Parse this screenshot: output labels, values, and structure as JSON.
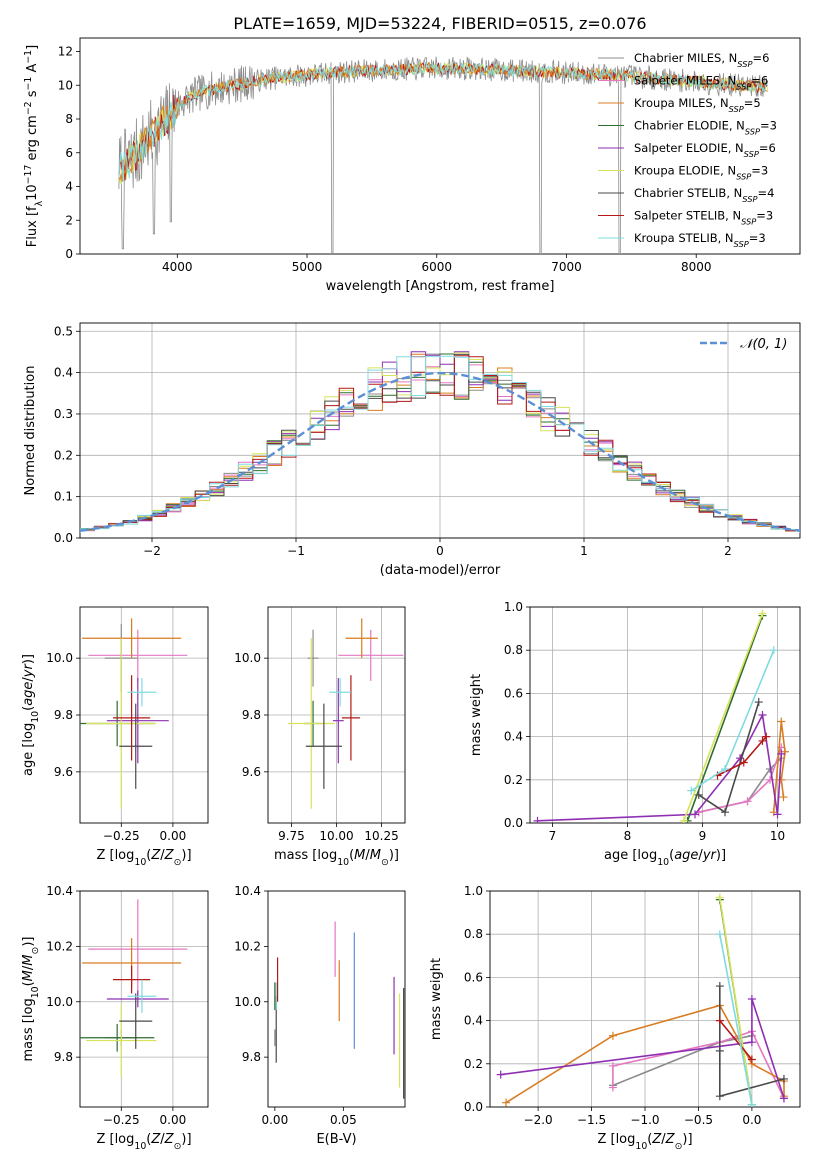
{
  "figure": {
    "title": "PLATE=1659, MJD=53224, FIBERID=0515, z=0.076"
  },
  "colors": {
    "Chabrier MILES": "#8c8c8c",
    "Salpeter MILES": "#e377c2",
    "Kroupa MILES": "#d97c21",
    "Chabrier ELODIE": "#2e6e2e",
    "Salpeter ELODIE": "#8e2fb3",
    "Kroupa ELODIE": "#d8e35a",
    "Chabrier STELIB": "#4a4a4a",
    "Salpeter STELIB": "#b41818",
    "Kroupa STELIB": "#7fdbe0",
    "gaussian": "#5b8fd6",
    "grid": "#b0b0b0"
  },
  "chart_data": [
    {
      "type": "line",
      "id": "spectrum",
      "xlabel": "wavelength [Angstrom, rest frame]",
      "ylabel": "Flux [f_λ10^-17 erg cm^-2 s^-1 A^-1]",
      "xlim": [
        3250,
        8800
      ],
      "ylim": [
        0,
        12.8
      ],
      "xticks": [
        4000,
        5000,
        6000,
        7000,
        8000
      ],
      "yticks": [
        0,
        2,
        4,
        6,
        8,
        10,
        12
      ],
      "grid": false,
      "legend_position": "upper-right",
      "legend": [
        {
          "label": "Chabrier MILES, N_SSP=6"
        },
        {
          "label": "Salpeter MILES, N_SSP=6"
        },
        {
          "label": "Kroupa MILES, N_SSP=5"
        },
        {
          "label": "Chabrier ELODIE, N_SSP=3"
        },
        {
          "label": "Salpeter ELODIE, N_SSP=6"
        },
        {
          "label": "Kroupa ELODIE, N_SSP=3"
        },
        {
          "label": "Chabrier STELIB, N_SSP=4"
        },
        {
          "label": "Salpeter STELIB, N_SSP=3"
        },
        {
          "label": "Kroupa STELIB, N_SSP=3"
        }
      ],
      "continuum": {
        "x": [
          3550,
          3650,
          3750,
          3850,
          3950,
          4000,
          4100,
          4200,
          4300,
          4500,
          4700,
          5000,
          5300,
          5600,
          5900,
          6200,
          6500,
          6800,
          7100,
          7400,
          7700,
          8000,
          8300,
          8550
        ],
        "y": [
          5.0,
          5.6,
          6.5,
          7.5,
          8.2,
          8.8,
          9.3,
          9.6,
          9.8,
          10.1,
          10.4,
          10.6,
          10.8,
          10.9,
          11.0,
          11.0,
          10.9,
          10.8,
          10.7,
          10.6,
          10.4,
          10.2,
          10.0,
          9.9
        ]
      },
      "dips": [
        {
          "x": 3580,
          "y": 0.3
        },
        {
          "x": 3820,
          "y": 1.2
        },
        {
          "x": 3950,
          "y": 1.9
        },
        {
          "x": 5195,
          "y": 0.1
        },
        {
          "x": 6800,
          "y": 0
        },
        {
          "x": 7410,
          "y": 0
        }
      ]
    },
    {
      "type": "line",
      "id": "residuals",
      "xlabel": "(data-model)/error",
      "ylabel": "Normed distribution",
      "xlim": [
        -2.5,
        2.5
      ],
      "ylim": [
        0,
        0.52
      ],
      "xticks": [
        -2,
        -1,
        0,
        1,
        2
      ],
      "yticks": [
        0.0,
        0.1,
        0.2,
        0.3,
        0.4,
        0.5
      ],
      "grid": true,
      "legend_label": "𝒩(0, 1)",
      "legend_position": "upper-right",
      "bin_width": 0.1,
      "histogram": "step histograms of the 9 fits, each following the N(0,1) curve"
    },
    {
      "type": "scatter",
      "id": "age_vs_Z",
      "xlabel": "Z [log10(Z/Z⊙)]",
      "ylabel": "age [log10(age/yr)]",
      "xlim": [
        -0.45,
        0.17
      ],
      "ylim": [
        9.42,
        10.18
      ],
      "xticks": [
        -0.25,
        0.0
      ],
      "yticks": [
        9.6,
        9.8,
        10.0
      ],
      "grid": true,
      "points": [
        {
          "name": "Chabrier MILES",
          "x": -0.25,
          "y": 10.0,
          "xerr": 0.08,
          "yerr": 0.12
        },
        {
          "name": "Salpeter MILES",
          "x": -0.17,
          "y": 10.01,
          "xerr": 0.24,
          "yerr": 0.09
        },
        {
          "name": "Kroupa MILES",
          "x": -0.2,
          "y": 10.07,
          "xerr": 0.24,
          "yerr": 0.07
        },
        {
          "name": "Chabrier ELODIE",
          "x": -0.27,
          "y": 9.77,
          "xerr": 0.18,
          "yerr": 0.08
        },
        {
          "name": "Salpeter ELODIE",
          "x": -0.17,
          "y": 9.78,
          "xerr": 0.15,
          "yerr": 0.15
        },
        {
          "name": "Kroupa ELODIE",
          "x": -0.25,
          "y": 9.77,
          "xerr": 0.17,
          "yerr": 0.3
        },
        {
          "name": "Chabrier STELIB",
          "x": -0.18,
          "y": 9.69,
          "xerr": 0.08,
          "yerr": 0.15
        },
        {
          "name": "Salpeter STELIB",
          "x": -0.2,
          "y": 9.79,
          "xerr": 0.09,
          "yerr": 0.15
        },
        {
          "name": "Kroupa STELIB",
          "x": -0.15,
          "y": 9.88,
          "xerr": 0.07,
          "yerr": 0.05
        }
      ]
    },
    {
      "type": "scatter",
      "id": "age_vs_mass",
      "xlabel": "mass [log10(M/M⊙)]",
      "ylabel": "",
      "xlim": [
        9.62,
        10.38
      ],
      "ylim": [
        9.42,
        10.18
      ],
      "xticks": [
        9.75,
        10.0,
        10.25
      ],
      "yticks": [
        9.6,
        9.8,
        10.0
      ],
      "grid": true,
      "points": [
        {
          "name": "Chabrier MILES",
          "x": 9.87,
          "y": 10.0,
          "xerr": 0.03,
          "yerr": 0.1
        },
        {
          "name": "Salpeter MILES",
          "x": 10.19,
          "y": 10.01,
          "xerr": 0.18,
          "yerr": 0.09
        },
        {
          "name": "Kroupa MILES",
          "x": 10.14,
          "y": 10.07,
          "xerr": 0.09,
          "yerr": 0.07
        },
        {
          "name": "Chabrier ELODIE",
          "x": 9.87,
          "y": 9.77,
          "xerr": 0.05,
          "yerr": 0.08
        },
        {
          "name": "Salpeter ELODIE",
          "x": 10.01,
          "y": 9.78,
          "xerr": 0.03,
          "yerr": 0.15
        },
        {
          "name": "Kroupa ELODIE",
          "x": 9.86,
          "y": 9.77,
          "xerr": 0.13,
          "yerr": 0.3
        },
        {
          "name": "Chabrier STELIB",
          "x": 9.93,
          "y": 9.69,
          "xerr": 0.1,
          "yerr": 0.15
        },
        {
          "name": "Salpeter STELIB",
          "x": 10.08,
          "y": 9.79,
          "xerr": 0.05,
          "yerr": 0.15
        },
        {
          "name": "Kroupa STELIB",
          "x": 10.02,
          "y": 9.88,
          "xerr": 0.06,
          "yerr": 0.05
        }
      ]
    },
    {
      "type": "line",
      "id": "weight_vs_age",
      "xlabel": "age [log10(age/yr)]",
      "ylabel": "mass weight",
      "xlim": [
        6.7,
        10.3
      ],
      "ylim": [
        0,
        1.0
      ],
      "xticks": [
        7,
        8,
        9,
        10
      ],
      "yticks": [
        0.0,
        0.2,
        0.4,
        0.6,
        0.8,
        1.0
      ],
      "grid": true,
      "series": [
        {
          "name": "Chabrier MILES",
          "x": [
            8.95,
            9.6,
            9.9,
            10.05
          ],
          "y": [
            0.05,
            0.1,
            0.25,
            0.3
          ]
        },
        {
          "name": "Salpeter MILES",
          "x": [
            8.95,
            9.6,
            9.9,
            10.05
          ],
          "y": [
            0.05,
            0.1,
            0.2,
            0.35
          ]
        },
        {
          "name": "Kroupa MILES",
          "x": [
            9.95,
            10.05,
            10.1,
            10.05,
            10.08
          ],
          "y": [
            0.05,
            0.47,
            0.33,
            0.2,
            0.12
          ]
        },
        {
          "name": "Chabrier ELODIE",
          "x": [
            8.8,
            9.8
          ],
          "y": [
            0.01,
            0.96
          ]
        },
        {
          "name": "Salpeter ELODIE",
          "x": [
            6.8,
            8.9,
            9.5,
            9.8,
            10.0,
            10.05
          ],
          "y": [
            0.01,
            0.04,
            0.3,
            0.5,
            0.04,
            0.32
          ]
        },
        {
          "name": "Kroupa ELODIE",
          "x": [
            8.75,
            9.8
          ],
          "y": [
            0.01,
            0.97
          ]
        },
        {
          "name": "Chabrier STELIB",
          "x": [
            8.95,
            9.3,
            9.75
          ],
          "y": [
            0.13,
            0.05,
            0.56
          ]
        },
        {
          "name": "Salpeter STELIB",
          "x": [
            9.2,
            9.55,
            9.8,
            9.85
          ],
          "y": [
            0.22,
            0.28,
            0.38,
            0.4
          ]
        },
        {
          "name": "Kroupa STELIB",
          "x": [
            8.85,
            9.3,
            9.95
          ],
          "y": [
            0.15,
            0.25,
            0.8
          ]
        }
      ]
    },
    {
      "type": "scatter",
      "id": "mass_vs_Z",
      "xlabel": "Z [log10(Z/Z⊙)]",
      "ylabel": "mass [log10(M/M⊙)]",
      "xlim": [
        -0.45,
        0.17
      ],
      "ylim": [
        9.62,
        10.4
      ],
      "xticks": [
        -0.25,
        0.0
      ],
      "yticks": [
        9.8,
        10.0,
        10.2,
        10.4
      ],
      "grid": true,
      "points": [
        {
          "name": "Chabrier MILES",
          "x": -0.25,
          "y": 9.87,
          "xerr": 0.08,
          "yerr": 0.03
        },
        {
          "name": "Salpeter MILES",
          "x": -0.17,
          "y": 10.19,
          "xerr": 0.24,
          "yerr": 0.18
        },
        {
          "name": "Kroupa MILES",
          "x": -0.2,
          "y": 10.14,
          "xerr": 0.24,
          "yerr": 0.09
        },
        {
          "name": "Chabrier ELODIE",
          "x": -0.27,
          "y": 9.87,
          "xerr": 0.18,
          "yerr": 0.05
        },
        {
          "name": "Salpeter ELODIE",
          "x": -0.17,
          "y": 10.01,
          "xerr": 0.15,
          "yerr": 0.03
        },
        {
          "name": "Kroupa ELODIE",
          "x": -0.25,
          "y": 9.86,
          "xerr": 0.17,
          "yerr": 0.13
        },
        {
          "name": "Chabrier STELIB",
          "x": -0.18,
          "y": 9.93,
          "xerr": 0.08,
          "yerr": 0.1
        },
        {
          "name": "Salpeter STELIB",
          "x": -0.2,
          "y": 10.08,
          "xerr": 0.09,
          "yerr": 0.05
        },
        {
          "name": "Kroupa STELIB",
          "x": -0.15,
          "y": 10.02,
          "xerr": 0.07,
          "yerr": 0.06
        }
      ]
    },
    {
      "type": "scatter",
      "id": "mass_vs_ebv",
      "xlabel": "E(B-V)",
      "ylabel": "",
      "xlim": [
        -0.005,
        0.095
      ],
      "ylim": [
        9.62,
        10.4
      ],
      "xticks": [
        0.0,
        0.05
      ],
      "yticks": [
        9.8,
        10.0,
        10.2,
        10.4
      ],
      "grid": false,
      "points": [
        {
          "name": "Chabrier MILES",
          "x": 0.0,
          "y": 9.87,
          "yerr": 0.03
        },
        {
          "name": "Salpeter MILES",
          "x": 0.044,
          "y": 10.19,
          "yerr": 0.1
        },
        {
          "name": "Kroupa MILES",
          "x": 0.047,
          "y": 10.04,
          "yerr": 0.11
        },
        {
          "name": "Chabrier ELODIE",
          "x": 0.0,
          "y": 10.02,
          "yerr": 0.05
        },
        {
          "name": "Salpeter ELODIE",
          "x": 0.087,
          "y": 9.95,
          "yerr": 0.14
        },
        {
          "name": "Kroupa ELODIE",
          "x": 0.091,
          "y": 9.86,
          "yerr": 0.17
        },
        {
          "name": "Chabrier STELIB",
          "x": 0.001,
          "y": 9.9,
          "yerr": 0.12
        },
        {
          "name": "Salpeter STELIB",
          "x": 0.002,
          "y": 10.08,
          "yerr": 0.08
        },
        {
          "name": "Kroupa STELIB",
          "x": 0.001,
          "y": 10.02,
          "yerr": 0.05
        }
      ],
      "extra_points": [
        {
          "name": "blue",
          "x": 0.058,
          "y": 10.04,
          "yerr": 0.21
        },
        {
          "name": "dark",
          "x": 0.094,
          "y": 9.85,
          "yerr": 0.2
        }
      ]
    },
    {
      "type": "line",
      "id": "weight_vs_Z",
      "xlabel": "Z [log10(Z/Z⊙)]",
      "ylabel": "mass weight",
      "xlim": [
        -2.45,
        0.45
      ],
      "ylim": [
        0,
        1.0
      ],
      "xticks": [
        -2.0,
        -1.5,
        -1.0,
        -0.5,
        0.0
      ],
      "yticks": [
        0.0,
        0.2,
        0.4,
        0.6,
        0.8,
        1.0
      ],
      "grid": true,
      "series": [
        {
          "name": "Chabrier MILES",
          "x": [
            -1.3,
            -0.3,
            0.0
          ],
          "y": [
            0.1,
            0.3,
            0.33
          ]
        },
        {
          "name": "Salpeter MILES",
          "x": [
            -1.3,
            -1.3,
            -0.3,
            0.0,
            0.3
          ],
          "y": [
            0.09,
            0.19,
            0.3,
            0.35,
            0.04
          ]
        },
        {
          "name": "Kroupa MILES",
          "x": [
            -2.3,
            -1.3,
            -0.3,
            0.0,
            0.3,
            0.3
          ],
          "y": [
            0.02,
            0.33,
            0.47,
            0.2,
            0.12,
            0.05
          ]
        },
        {
          "name": "Chabrier ELODIE",
          "x": [
            -0.3,
            0.0
          ],
          "y": [
            0.96,
            0.01
          ]
        },
        {
          "name": "Salpeter ELODIE",
          "x": [
            -2.35,
            0.0,
            0.0,
            0.3
          ],
          "y": [
            0.15,
            0.3,
            0.5,
            0.04
          ]
        },
        {
          "name": "Kroupa ELODIE",
          "x": [
            -0.3,
            0.0
          ],
          "y": [
            0.97,
            0.01
          ]
        },
        {
          "name": "Chabrier STELIB",
          "x": [
            -0.3,
            -0.3,
            -0.3,
            0.3
          ],
          "y": [
            0.56,
            0.26,
            0.05,
            0.13
          ]
        },
        {
          "name": "Salpeter STELIB",
          "x": [
            -0.3,
            0.0
          ],
          "y": [
            0.4,
            0.22
          ]
        },
        {
          "name": "Kroupa STELIB",
          "x": [
            -0.3,
            0.0
          ],
          "y": [
            0.8,
            0.01
          ]
        }
      ]
    }
  ]
}
